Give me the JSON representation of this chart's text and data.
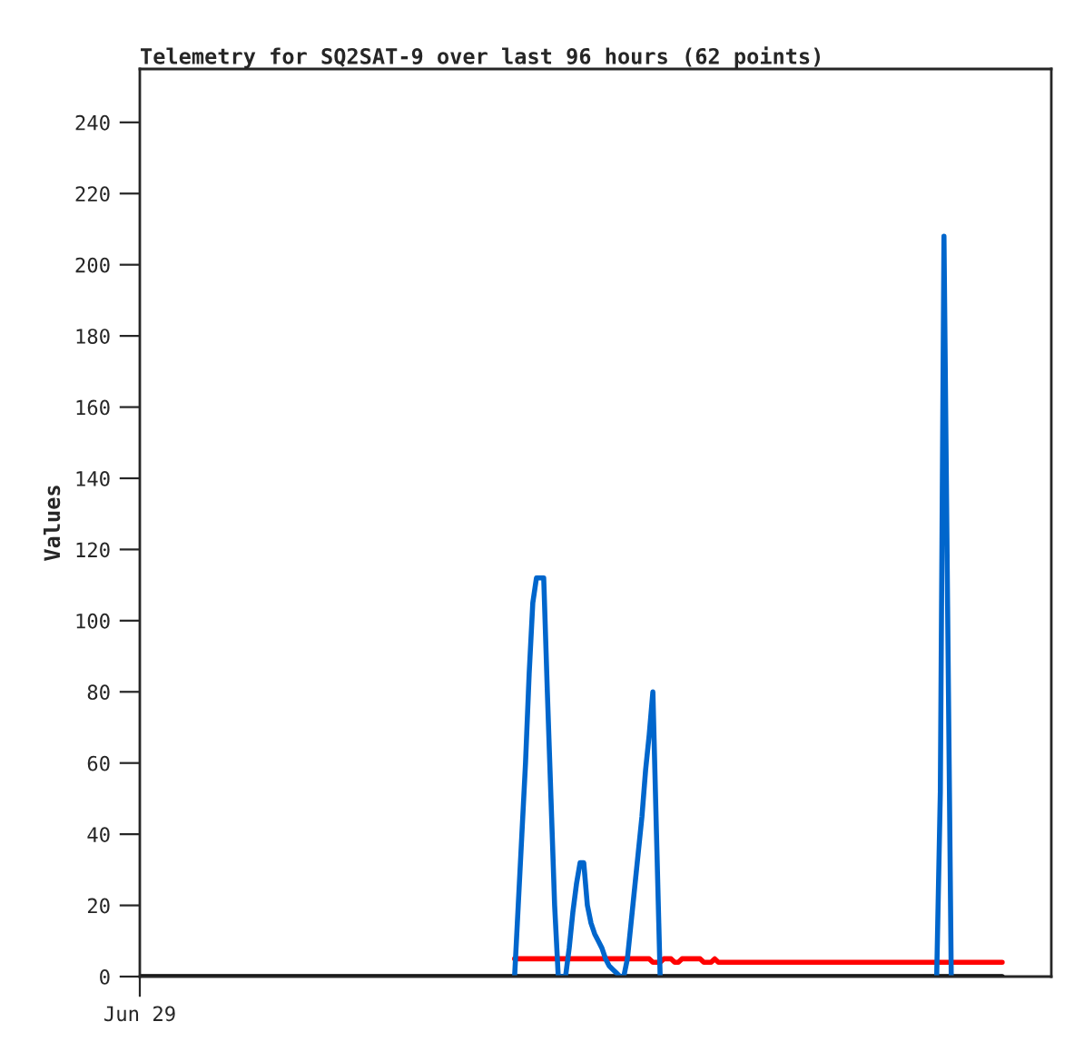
{
  "chart_data": {
    "type": "line",
    "title": "Telemetry for SQ2SAT-9 over last 96 hours (62 points)",
    "ylabel": "Values",
    "categories": [
      "Jun 29",
      null,
      null,
      null,
      null,
      null,
      null,
      null,
      null,
      null,
      null,
      null,
      null,
      null,
      null,
      null,
      null,
      null,
      null,
      null,
      null,
      null,
      null,
      null,
      null,
      null,
      null,
      null,
      null,
      null,
      null,
      null,
      null,
      null,
      null,
      null,
      null,
      null,
      null,
      null,
      null,
      null,
      null,
      null,
      null,
      null,
      null,
      null,
      null,
      null,
      null,
      null,
      null,
      null,
      null,
      null,
      null,
      null,
      null,
      null,
      null,
      null,
      null,
      null,
      null,
      null,
      null,
      null,
      null,
      null,
      null,
      null,
      null,
      null,
      null,
      null,
      null,
      null,
      null,
      null,
      null,
      null,
      null,
      null,
      null,
      null,
      null,
      null,
      null,
      null,
      null,
      null,
      null,
      null,
      null,
      null,
      null,
      null,
      null,
      null,
      null,
      null,
      null,
      null,
      null,
      null,
      null,
      null,
      null,
      null,
      null,
      null,
      null,
      null,
      null,
      null,
      null,
      null,
      null,
      null,
      null,
      null,
      null,
      null,
      null,
      null,
      null,
      null,
      null,
      null,
      null,
      null,
      null,
      null,
      null,
      null,
      null,
      null,
      null,
      null,
      null,
      null,
      null,
      null,
      null,
      null,
      null,
      null,
      null,
      null,
      null,
      null,
      null,
      null,
      null,
      null,
      null,
      null,
      null,
      null,
      null,
      null,
      null,
      null,
      null,
      null,
      null,
      null,
      null,
      null,
      null,
      null,
      null,
      null,
      null,
      null,
      null,
      null,
      null,
      null,
      null,
      null,
      null,
      null,
      null,
      null,
      null,
      null,
      null,
      null,
      null,
      null,
      null,
      null,
      null,
      null,
      null,
      null,
      null,
      null,
      null,
      null,
      null,
      null,
      null,
      null,
      null,
      null,
      null,
      null,
      null,
      null,
      null,
      null,
      null,
      null,
      null,
      null,
      null,
      null,
      null,
      null,
      null,
      null,
      null,
      null,
      null,
      null,
      null,
      null,
      null,
      null,
      null,
      null,
      null,
      null,
      null,
      null,
      null,
      null,
      null,
      null,
      null,
      null,
      null,
      null,
      null,
      null,
      null,
      null,
      null
    ],
    "ylim": [
      0,
      255
    ],
    "yticks": [
      0,
      20,
      40,
      60,
      80,
      100,
      120,
      140,
      160,
      180,
      200,
      220,
      240
    ],
    "grid": false,
    "legend": false,
    "marker": "none",
    "line_style": "solid",
    "series": [
      {
        "color": "#000000",
        "values": [
          0,
          0,
          0,
          0,
          0,
          0,
          0,
          0,
          0,
          0,
          0,
          0,
          0,
          0,
          0,
          0,
          0,
          0,
          0,
          0,
          0,
          0,
          0,
          0,
          0,
          0,
          0,
          0,
          0,
          0,
          0,
          0,
          0,
          0,
          0,
          0,
          0,
          0,
          0,
          0,
          0,
          0,
          0,
          0,
          0,
          0,
          0,
          0,
          0,
          0,
          0,
          0,
          0,
          0,
          0,
          0,
          0,
          0,
          0,
          0,
          0,
          0,
          0,
          0,
          0,
          0,
          0,
          0,
          0,
          0,
          0,
          0,
          0,
          0,
          0,
          0,
          0,
          0,
          0,
          0,
          0,
          0,
          0,
          0,
          0,
          0,
          0,
          0,
          0,
          0,
          0,
          0,
          0,
          0,
          0,
          0,
          0,
          0,
          0,
          0,
          0,
          0,
          0,
          0,
          0,
          0,
          0,
          0,
          0,
          0,
          0,
          0,
          0,
          0,
          0,
          0,
          0,
          0,
          0,
          0,
          0,
          0,
          0,
          0,
          0,
          0,
          0,
          0,
          0,
          0,
          0,
          0,
          0,
          0,
          0,
          0,
          0,
          0,
          0,
          0,
          0,
          0,
          0,
          0,
          0,
          0,
          0,
          0,
          0,
          0,
          0,
          0,
          0,
          0,
          0,
          0,
          0,
          0,
          0,
          0,
          0,
          0,
          0,
          0,
          0,
          0,
          0,
          0,
          0,
          0,
          0,
          0,
          0,
          0,
          0,
          0,
          0,
          0,
          0,
          0,
          0,
          0,
          0,
          0,
          0,
          0,
          0,
          0,
          0,
          0,
          0,
          0,
          0,
          0,
          0,
          0,
          0,
          0,
          0,
          0,
          0,
          0,
          0,
          0,
          0,
          0,
          0,
          0,
          0,
          0,
          0,
          0,
          0,
          0,
          0,
          0,
          0,
          0,
          0,
          0,
          0,
          0,
          0,
          0,
          0,
          0,
          0,
          0,
          0,
          0,
          0,
          0,
          0,
          0,
          0,
          0,
          0,
          0,
          null,
          null,
          null,
          null,
          null,
          null,
          null,
          null,
          null,
          null,
          null,
          null,
          null
        ]
      },
      {
        "color": "#ff0000",
        "values": [
          null,
          null,
          null,
          null,
          null,
          null,
          null,
          null,
          null,
          null,
          null,
          null,
          null,
          null,
          null,
          null,
          null,
          null,
          null,
          null,
          null,
          null,
          null,
          null,
          null,
          null,
          null,
          null,
          null,
          null,
          null,
          null,
          null,
          null,
          null,
          null,
          null,
          null,
          null,
          null,
          null,
          null,
          null,
          null,
          null,
          null,
          null,
          null,
          null,
          null,
          null,
          null,
          null,
          null,
          null,
          null,
          null,
          null,
          null,
          null,
          null,
          null,
          null,
          null,
          null,
          null,
          null,
          null,
          null,
          null,
          null,
          null,
          null,
          null,
          null,
          null,
          null,
          null,
          null,
          null,
          null,
          null,
          null,
          null,
          null,
          null,
          null,
          null,
          null,
          null,
          null,
          null,
          null,
          null,
          null,
          null,
          null,
          null,
          null,
          null,
          null,
          null,
          null,
          5,
          5,
          5,
          5,
          5,
          5,
          5,
          5,
          5,
          5,
          5,
          5,
          5,
          5,
          5,
          5,
          5,
          5,
          5,
          5,
          5,
          5,
          5,
          5,
          5,
          5,
          5,
          5,
          5,
          5,
          5,
          5,
          5,
          5,
          5,
          5,
          5,
          5,
          4,
          4,
          4,
          5,
          5,
          5,
          4,
          4,
          5,
          5,
          5,
          5,
          5,
          5,
          4,
          4,
          4,
          5,
          4,
          4,
          4,
          4,
          4,
          4,
          4,
          4,
          4,
          4,
          4,
          4,
          4,
          4,
          4,
          4,
          4,
          4,
          4,
          4,
          4,
          4,
          4,
          4,
          4,
          4,
          4,
          4,
          4,
          4,
          4,
          4,
          4,
          4,
          4,
          4,
          4,
          4,
          4,
          4,
          4,
          4,
          4,
          4,
          4,
          4,
          4,
          4,
          4,
          4,
          4,
          4,
          4,
          4,
          4,
          4,
          4,
          4,
          4,
          4,
          4,
          4,
          4,
          4,
          4,
          4,
          4,
          4,
          4,
          4,
          4,
          4,
          4,
          4,
          4,
          4,
          4,
          4,
          4,
          null,
          null,
          null,
          null,
          null,
          null,
          null,
          null,
          null,
          null,
          null,
          null,
          null
        ]
      },
      {
        "color": "#0066cc",
        "values": [
          null,
          null,
          null,
          null,
          null,
          null,
          null,
          null,
          null,
          null,
          null,
          null,
          null,
          null,
          null,
          null,
          null,
          null,
          null,
          null,
          null,
          null,
          null,
          null,
          null,
          null,
          null,
          null,
          null,
          null,
          null,
          null,
          null,
          null,
          null,
          null,
          null,
          null,
          null,
          null,
          null,
          null,
          null,
          null,
          null,
          null,
          null,
          null,
          null,
          null,
          null,
          null,
          null,
          null,
          null,
          null,
          null,
          null,
          null,
          null,
          null,
          null,
          null,
          null,
          null,
          null,
          null,
          null,
          null,
          null,
          null,
          null,
          null,
          null,
          null,
          null,
          null,
          null,
          null,
          null,
          null,
          null,
          null,
          null,
          null,
          null,
          null,
          null,
          null,
          null,
          null,
          null,
          null,
          null,
          null,
          null,
          null,
          null,
          null,
          null,
          null,
          null,
          null,
          0,
          20,
          40,
          60,
          85,
          105,
          112,
          112,
          112,
          80,
          50,
          20,
          0,
          0,
          0,
          8,
          18,
          26,
          32,
          32,
          20,
          15,
          12,
          10,
          8,
          5,
          3,
          2,
          1,
          0,
          0,
          5,
          15,
          25,
          35,
          45,
          58,
          68,
          80,
          40,
          0,
          null,
          null,
          null,
          null,
          null,
          null,
          null,
          null,
          null,
          null,
          null,
          null,
          null,
          null,
          null,
          null,
          null,
          null,
          null,
          null,
          null,
          null,
          null,
          null,
          null,
          null,
          null,
          null,
          null,
          null,
          null,
          null,
          null,
          null,
          null,
          null,
          null,
          null,
          null,
          null,
          null,
          null,
          null,
          null,
          null,
          null,
          null,
          null,
          null,
          null,
          null,
          null,
          null,
          null,
          null,
          null,
          null,
          null,
          null,
          null,
          null,
          null,
          null,
          null,
          null,
          null,
          null,
          null,
          null,
          null,
          null,
          null,
          null,
          null,
          null,
          0,
          52,
          208,
          104,
          0,
          null,
          null,
          null,
          null,
          null,
          null,
          null,
          null,
          null,
          null,
          null,
          null,
          null,
          null,
          null,
          null,
          null,
          null,
          null,
          null,
          null,
          null,
          null,
          null,
          null,
          null,
          null
        ]
      }
    ]
  }
}
